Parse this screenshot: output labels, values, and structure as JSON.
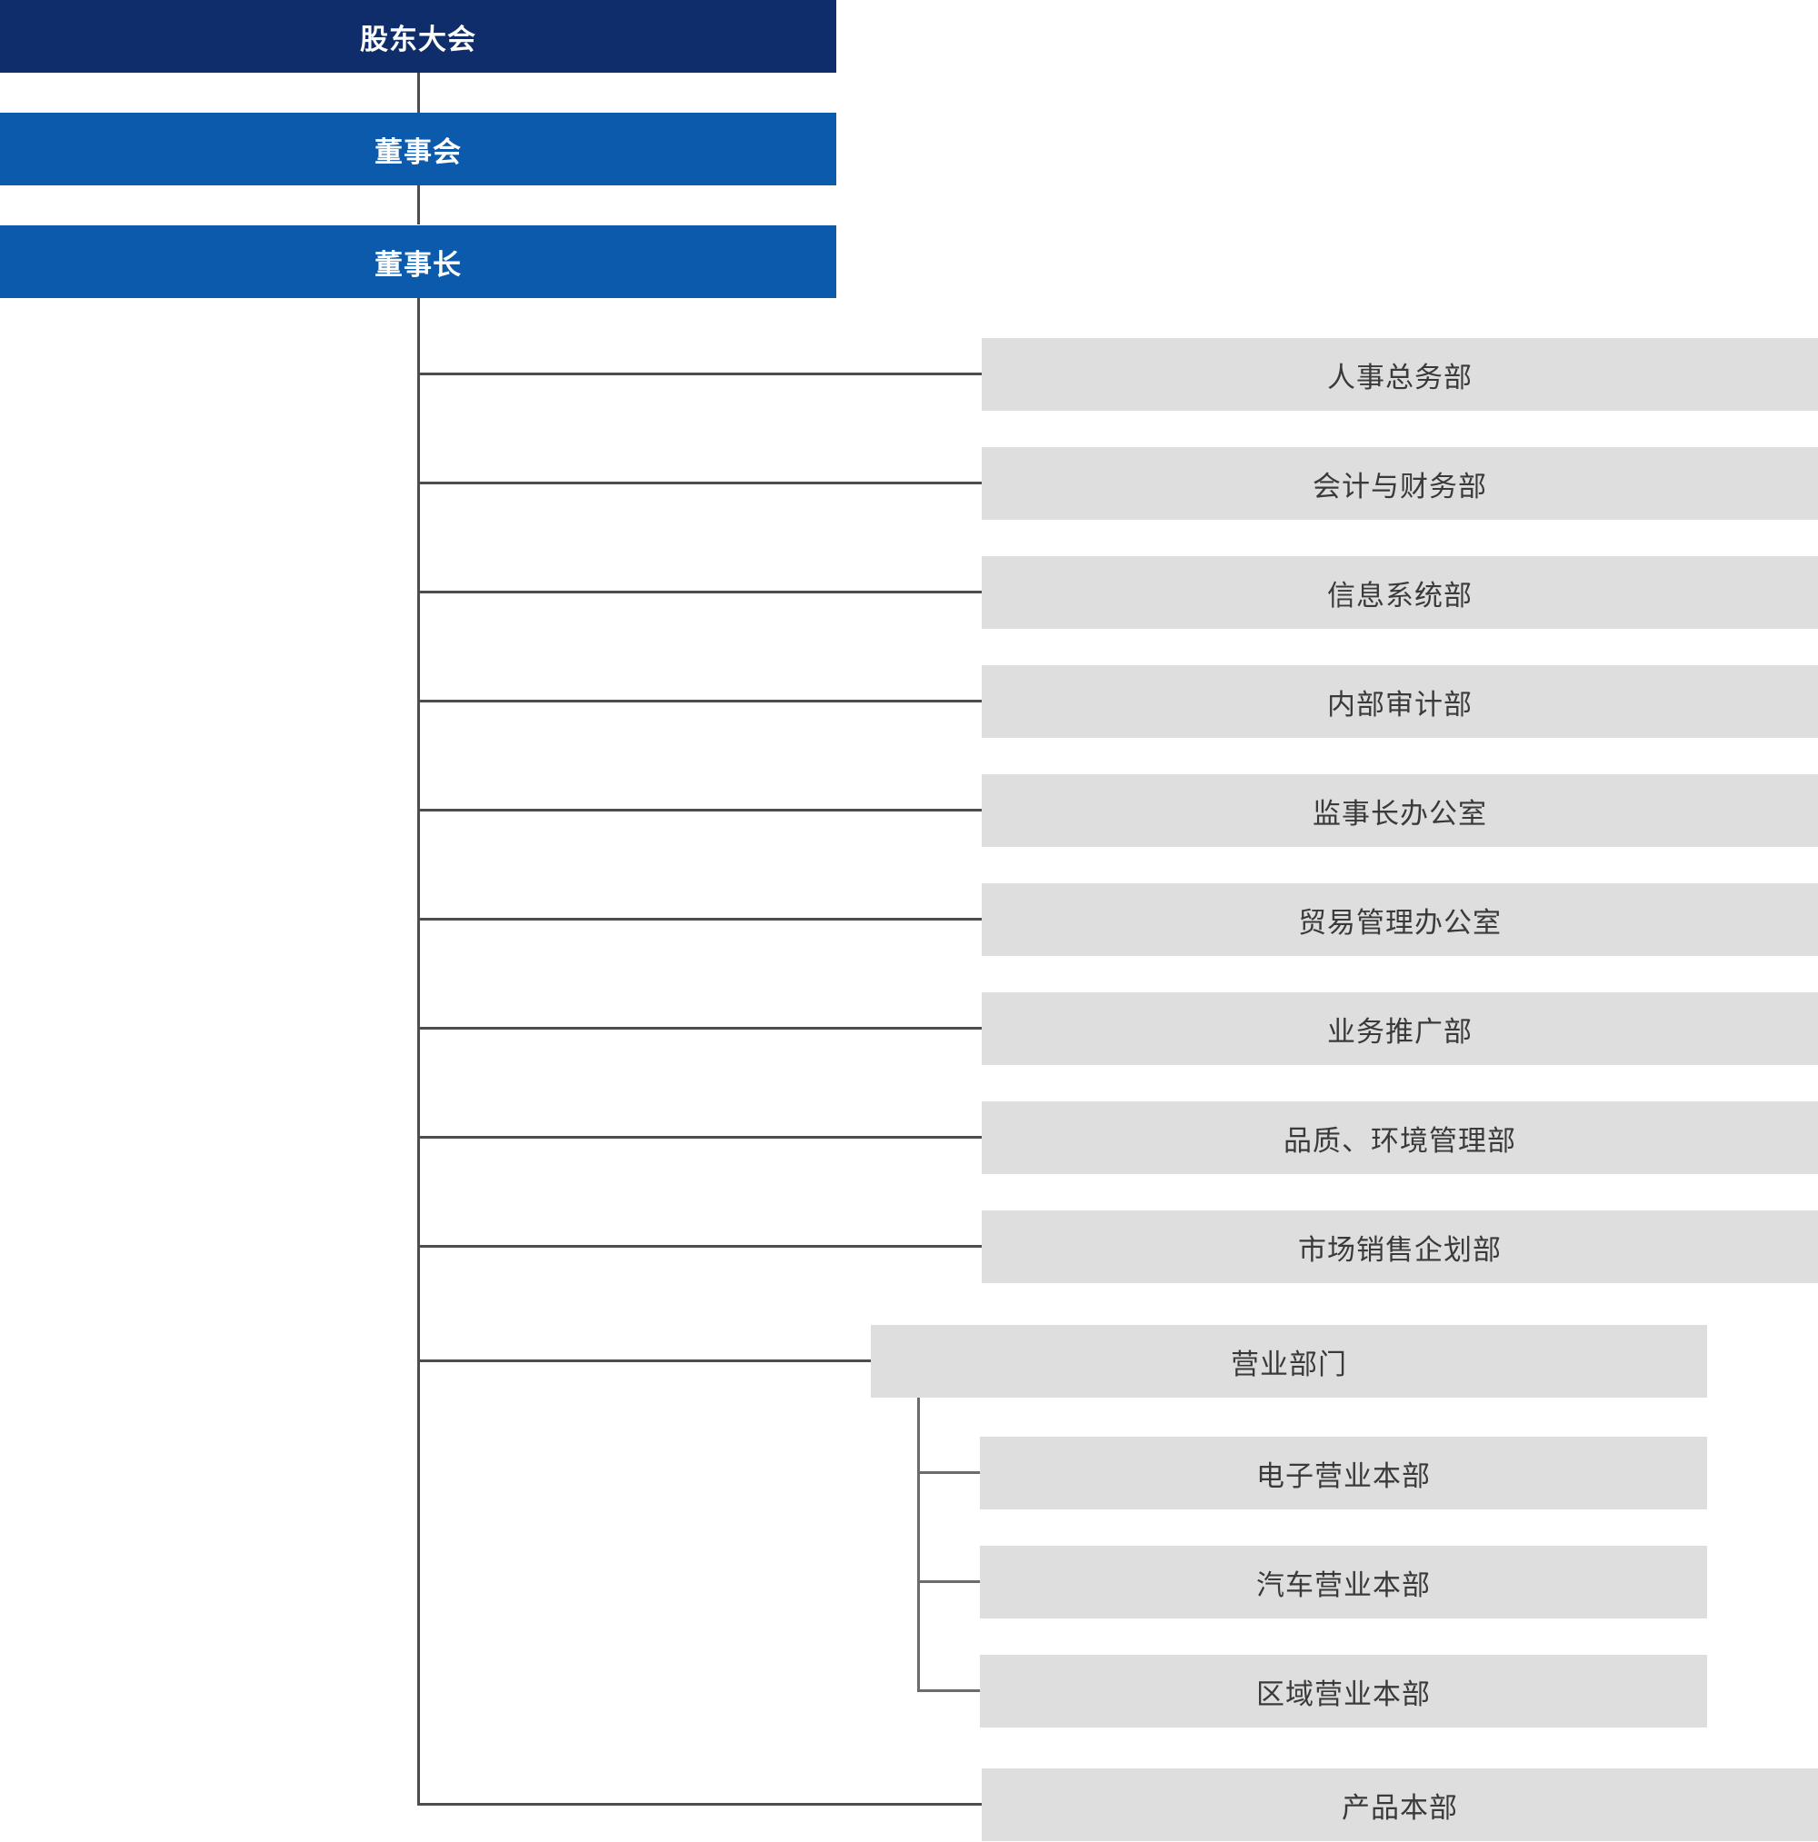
{
  "top_chain": [
    {
      "label": "股东大会"
    },
    {
      "label": "董事会"
    },
    {
      "label": "董事长"
    }
  ],
  "departments": [
    {
      "label": "人事总务部"
    },
    {
      "label": "会计与财务部"
    },
    {
      "label": "信息系统部"
    },
    {
      "label": "内部审计部"
    },
    {
      "label": "监事长办公室"
    },
    {
      "label": "贸易管理办公室"
    },
    {
      "label": "业务推广部"
    },
    {
      "label": "品质、环境管理部"
    },
    {
      "label": "市场销售企划部"
    }
  ],
  "sales_division": {
    "label": "营业部门",
    "children": [
      {
        "label": "电子营业本部"
      },
      {
        "label": "汽车营业本部"
      },
      {
        "label": "区域营业本部"
      }
    ]
  },
  "last_department": {
    "label": "产品本部"
  },
  "colors": {
    "top_navy": "#0f2d6b",
    "top_blue": "#0c5aab",
    "dept_bg": "#dedede",
    "dept_text": "#3a3a3a",
    "connector": "#4d4d4d"
  }
}
